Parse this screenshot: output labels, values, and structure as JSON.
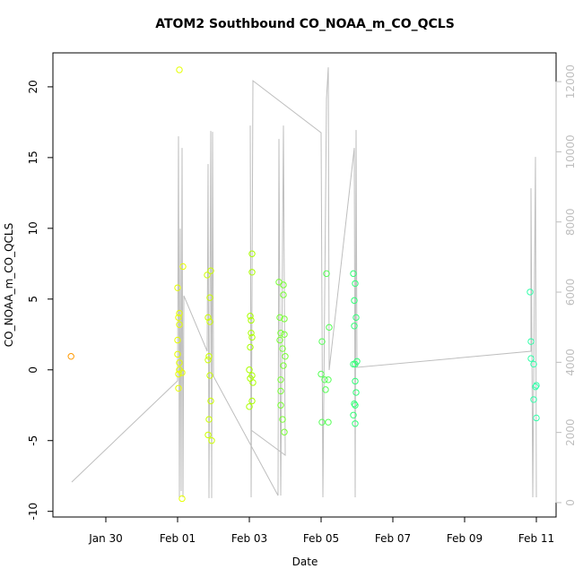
{
  "chart_data": {
    "type": "scatter",
    "title": "ATOM2 Southbound CO_NOAA_m_CO_QCLS",
    "x_label": "Date",
    "y_label": "CO_NOAA_m_CO_QCLS",
    "xlim": [
      28.525,
      42.55
    ],
    "xticks": [
      {
        "value": 30,
        "label": "Jan 30"
      },
      {
        "value": 32,
        "label": "Feb 01"
      },
      {
        "value": 34,
        "label": "Feb 03"
      },
      {
        "value": 36,
        "label": "Feb 05"
      },
      {
        "value": 38,
        "label": "Feb 07"
      },
      {
        "value": 40,
        "label": "Feb 09"
      },
      {
        "value": 42,
        "label": "Feb 11"
      }
    ],
    "ylim": [
      -10.4,
      22.4
    ],
    "yticks": [
      -10,
      -5,
      0,
      5,
      10,
      15,
      20
    ],
    "y2lim": [
      -410,
      12820
    ],
    "y2ticks": [
      0,
      2000,
      4000,
      6000,
      8000,
      10000,
      12000
    ],
    "y2_color": "#bebebe",
    "series": [
      {
        "type": "line",
        "axis": "y2",
        "color": "#bebebe",
        "x": [
          29.05,
          32.0,
          32.025,
          32.05,
          32.075,
          32.1,
          32.125,
          32.15,
          32.175,
          32.825,
          32.85,
          32.875,
          32.925,
          32.95,
          32.975,
          33.0,
          34.8,
          34.825,
          34.875,
          34.95,
          35.0,
          34.05,
          34.025,
          34.05,
          34.1,
          36.0,
          36.05,
          36.15,
          36.2,
          36.225,
          36.925,
          36.95,
          36.975,
          37.0,
          41.85,
          41.85,
          41.9,
          41.975,
          42.0
        ],
        "values": [
          587,
          3472,
          10442,
          153,
          7812,
          332,
          10110,
          153,
          5897,
          4315,
          9650,
          128,
          10595,
          128,
          10569,
          3600,
          204,
          10365,
          204,
          10748,
          1353,
          2068,
          10748,
          153,
          12025,
          10544,
          153,
          11514,
          12408,
          3778,
          10110,
          153,
          10620,
          3855,
          4315,
          8961,
          153,
          9855,
          153
        ]
      },
      {
        "color": "#ff9900",
        "x": [
          29.03
        ],
        "values": [
          0.95
        ]
      },
      {
        "color": "#e6ff00",
        "x": [
          32.05,
          32.0,
          32.15,
          32.025,
          32.05,
          32.05,
          32.0,
          32.05,
          32.05,
          32.025,
          32.125,
          32.025,
          32.125,
          32.0
        ],
        "values": [
          21.2,
          5.8,
          7.3,
          3.7,
          4.0,
          3.2,
          1.1,
          0.5,
          0.0,
          -0.3,
          -0.2,
          -1.3,
          -9.1,
          2.1
        ]
      },
      {
        "color": "#ccff00",
        "x": [
          32.825,
          32.925,
          32.9,
          32.85,
          32.9,
          32.875,
          32.85,
          32.9,
          32.925,
          32.875,
          32.85,
          32.95
        ],
        "values": [
          6.7,
          7.0,
          5.1,
          3.7,
          3.4,
          0.95,
          0.7,
          -0.4,
          -2.2,
          -3.5,
          -4.6,
          -5.0
        ]
      },
      {
        "color": "#aaff00",
        "x": [
          34.075,
          34.075,
          34.025,
          34.05,
          34.05,
          34.075,
          34.025,
          34.0,
          34.075,
          34.025,
          34.1,
          34.075,
          34.0
        ],
        "values": [
          8.2,
          6.9,
          3.8,
          3.5,
          2.6,
          2.3,
          1.6,
          0.0,
          -0.4,
          -0.6,
          -0.9,
          -2.2,
          -2.6
        ]
      },
      {
        "color": "#77ff33",
        "x": [
          34.825,
          34.95,
          34.95,
          34.85,
          34.975,
          34.875,
          34.975,
          34.85,
          34.925,
          35.0,
          34.95,
          34.875,
          34.875,
          34.875,
          34.925,
          34.975
        ],
        "values": [
          6.2,
          6.0,
          5.3,
          3.7,
          3.6,
          2.6,
          2.5,
          2.1,
          1.5,
          0.95,
          0.3,
          -0.7,
          -1.5,
          -2.5,
          -3.5,
          -4.4
        ]
      },
      {
        "color": "#55ff55",
        "x": [
          36.025,
          36.15,
          36.225,
          36.0,
          36.1,
          36.2,
          36.125,
          36.025,
          36.2
        ],
        "values": [
          2.0,
          6.8,
          3.0,
          -0.3,
          -0.7,
          -0.7,
          -1.4,
          -3.7,
          -3.7
        ]
      },
      {
        "color": "#33ff77",
        "x": [
          36.9,
          36.95,
          36.925,
          36.975,
          36.925,
          37.0,
          36.95,
          36.9,
          36.95,
          36.975,
          36.925,
          36.95,
          36.9,
          36.95
        ],
        "values": [
          6.8,
          6.1,
          4.9,
          3.7,
          3.1,
          0.6,
          0.4,
          0.4,
          -0.8,
          -1.6,
          -2.4,
          -2.5,
          -3.2,
          -3.8
        ]
      },
      {
        "color": "#33ffaa",
        "x": [
          41.825,
          41.85,
          41.85,
          41.925,
          41.975,
          42.0,
          41.925,
          42.0
        ],
        "values": [
          5.5,
          2.0,
          0.8,
          0.4,
          -1.2,
          -1.1,
          -2.1,
          -3.4
        ]
      }
    ]
  }
}
